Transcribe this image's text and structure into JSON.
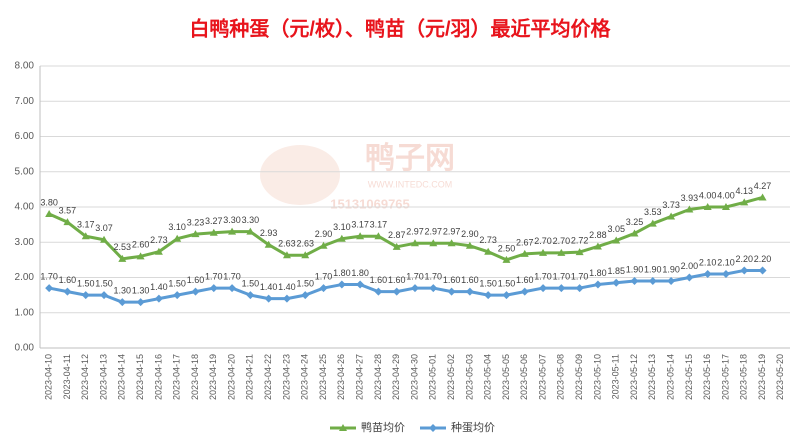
{
  "chart_data": {
    "type": "line",
    "title": "白鸭种蛋（元/枚）、鸭苗（元/羽）最近平均价格",
    "watermark": [
      "鸭子网",
      "WWW.INTEDC.COM",
      "15131069765"
    ],
    "categories": [
      "2023-04-10",
      "2023-04-11",
      "2023-04-12",
      "2023-04-13",
      "2023-04-14",
      "2023-04-15",
      "2023-04-16",
      "2023-04-17",
      "2023-04-18",
      "2023-04-19",
      "2023-04-20",
      "2023-04-21",
      "2023-04-22",
      "2023-04-23",
      "2023-04-24",
      "2023-04-25",
      "2023-04-26",
      "2023-04-27",
      "2023-04-28",
      "2023-04-29",
      "2023-04-30",
      "2023-05-01",
      "2023-05-02",
      "2023-05-03",
      "2023-05-04",
      "2023-05-05",
      "2023-05-06",
      "2023-05-07",
      "2023-05-08",
      "2023-05-09",
      "2023-05-10",
      "2023-05-11",
      "2023-05-12",
      "2023-05-13",
      "2023-05-14",
      "2023-05-15",
      "2023-05-16",
      "2023-05-17",
      "2023-05-18",
      "2023-05-19",
      "2023-05-20"
    ],
    "series": [
      {
        "name": "鸭苗均价",
        "color": "#70ad47",
        "marker": "triangle",
        "values": [
          3.8,
          3.57,
          3.17,
          3.07,
          2.53,
          2.6,
          2.73,
          3.1,
          3.23,
          3.27,
          3.3,
          3.3,
          2.93,
          2.63,
          2.63,
          2.9,
          3.1,
          3.17,
          3.17,
          2.87,
          2.97,
          2.97,
          2.97,
          2.9,
          2.73,
          2.5,
          2.67,
          2.7,
          2.7,
          2.72,
          2.88,
          3.05,
          3.25,
          3.53,
          3.73,
          3.93,
          4.0,
          4.0,
          4.13,
          4.27,
          null
        ],
        "value_labels": [
          "3.80",
          "3.57",
          "3.17",
          "3.07",
          "2.53",
          "2.60",
          "2.73",
          "3.10",
          "3.23",
          "3.27",
          "3.30",
          "3.30",
          "2.93",
          "2.63",
          "2.63",
          "2.90",
          "3.10",
          "3.17",
          "3.17",
          "2.87",
          "2.97",
          "2.97",
          "2.97",
          "2.90",
          "2.73",
          "2.50",
          "2.67",
          "2.70",
          "2.70",
          "2.72",
          "2.88",
          "3.05",
          "3.25",
          "3.53",
          "3.73",
          "3.93",
          "4.00",
          "4.00",
          "4.13",
          "4.27",
          null
        ]
      },
      {
        "name": "种蛋均价",
        "color": "#5b9bd5",
        "marker": "diamond",
        "values": [
          1.7,
          1.6,
          1.5,
          1.5,
          1.3,
          1.3,
          1.4,
          1.5,
          1.6,
          1.7,
          1.7,
          1.5,
          1.4,
          1.4,
          1.5,
          1.7,
          1.8,
          1.8,
          1.6,
          1.6,
          1.7,
          1.7,
          1.6,
          1.6,
          1.5,
          1.5,
          1.6,
          1.7,
          1.7,
          1.7,
          1.8,
          1.85,
          1.9,
          1.9,
          1.9,
          2.0,
          2.1,
          2.1,
          2.2,
          2.2,
          null
        ],
        "value_labels": [
          "1.70",
          "1.60",
          "1.50",
          "1.50",
          "1.30",
          "1.30",
          "1.40",
          "1.50",
          "1.60",
          "1.70",
          "1.70",
          "1.50",
          "1.40",
          "1.40",
          "1.50",
          "1.70",
          "1.80",
          "1.80",
          "1.60",
          "1.60",
          "1.70",
          "1.70",
          "1.60",
          "1.60",
          "1.50",
          "1.50",
          "1.60",
          "1.70",
          "1.70",
          "1.70",
          "1.80",
          "1.85",
          "1.90",
          "1.90",
          "1.90",
          "2.00",
          "2.10",
          "2.10",
          "2.20",
          "2.20",
          null
        ]
      }
    ],
    "ylim": [
      0,
      8
    ],
    "yticks": [
      {
        "value": 0,
        "label": "0.00"
      },
      {
        "value": 1,
        "label": "1.00"
      },
      {
        "value": 2,
        "label": "2.00"
      },
      {
        "value": 3,
        "label": "3.00"
      },
      {
        "value": 4,
        "label": "4.00"
      },
      {
        "value": 5,
        "label": "5.00"
      },
      {
        "value": 6,
        "label": "6.00"
      },
      {
        "value": 7,
        "label": "7.00"
      },
      {
        "value": 8,
        "label": "8.00"
      }
    ],
    "grid": true,
    "legend": "bottom"
  }
}
